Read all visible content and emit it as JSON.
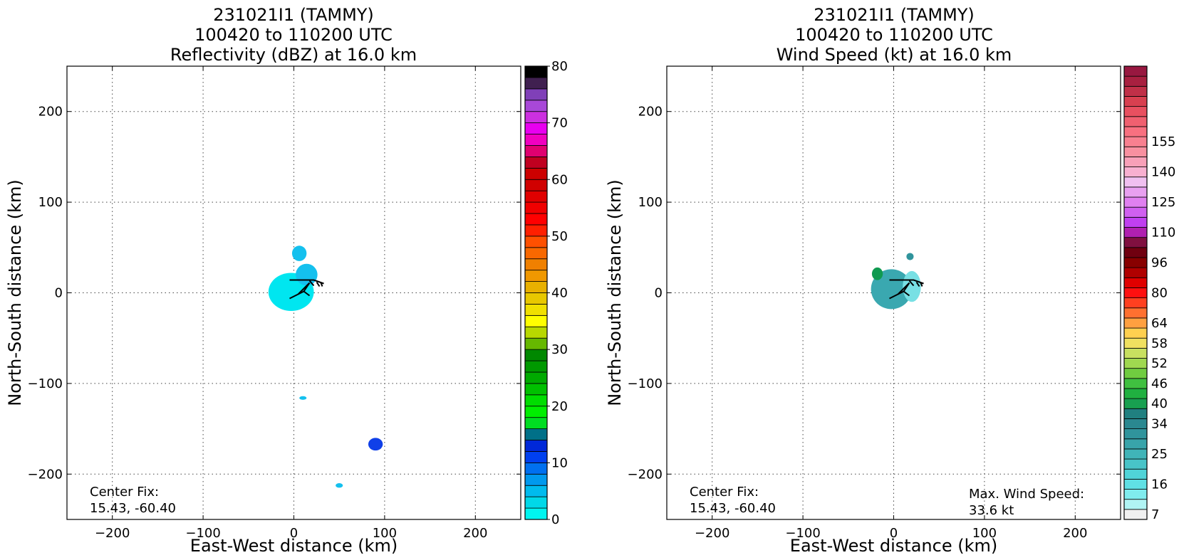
{
  "chart_data": [
    {
      "type": "heatmap",
      "title_lines": [
        "231021I1 (TAMMY)",
        "100420 to 110200 UTC",
        "Reflectivity (dBZ) at 16.0 km"
      ],
      "xlabel": "East-West distance (km)",
      "ylabel": "North-South distance (km)",
      "xlim": [
        -250,
        250
      ],
      "ylim": [
        -250,
        250
      ],
      "xticks": [
        -200,
        -100,
        0,
        100,
        200
      ],
      "yticks": [
        -200,
        -100,
        0,
        100,
        200
      ],
      "xtick_labels": [
        "−200",
        "−100",
        "0",
        "100",
        "200"
      ],
      "ytick_labels": [
        "−200",
        "−100",
        "0",
        "100",
        "200"
      ],
      "grid": true,
      "annotation_left": [
        "Center Fix:",
        "15.43, -60.40"
      ],
      "annotation_right": [],
      "colorbar": {
        "min": 0,
        "max": 80,
        "tick_values": [
          0,
          10,
          20,
          30,
          40,
          50,
          60,
          70,
          80
        ],
        "tick_labels": [
          "0",
          "10",
          "20",
          "30",
          "40",
          "50",
          "60",
          "70",
          "80"
        ],
        "colors": [
          "#00f5f0",
          "#00d8e8",
          "#00bbee",
          "#0099ee",
          "#0070f0",
          "#0040f0",
          "#0028d8",
          "#007088",
          "#00dd22",
          "#00ee00",
          "#00dd00",
          "#00c000",
          "#00aa00",
          "#009900",
          "#008800",
          "#66b800",
          "#b8d800",
          "#ffff00",
          "#f0e000",
          "#e8c800",
          "#e8b000",
          "#f09800",
          "#f08000",
          "#f86800",
          "#ff5000",
          "#ff2000",
          "#ff0000",
          "#f00000",
          "#e00000",
          "#d00000",
          "#cc0000",
          "#c00020",
          "#e00070",
          "#f000c0",
          "#e800f0",
          "#cc30e0",
          "#a848d8",
          "#8040b8",
          "#402050",
          "#000000"
        ]
      },
      "features": [
        {
          "name": "central-echo-cluster",
          "value_dbz": 3,
          "color": "#00e6f0",
          "x": [
            -28,
            22
          ],
          "y": [
            -20,
            22
          ]
        },
        {
          "name": "central-echo-upper",
          "value_dbz": 6,
          "color": "#14c0ee",
          "x": [
            2,
            26
          ],
          "y": [
            8,
            32
          ]
        },
        {
          "name": "echo-cluster-north",
          "value_dbz": 6,
          "color": "#14c0ee",
          "x": [
            -2,
            14
          ],
          "y": [
            35,
            52
          ]
        },
        {
          "name": "echo-speck-south",
          "value_dbz": 6,
          "color": "#14c0ee",
          "x": [
            6,
            14
          ],
          "y": [
            -118,
            -114
          ]
        },
        {
          "name": "echo-band-southeast",
          "value_dbz": 12,
          "color": "#1040e8",
          "x": [
            82,
            98
          ],
          "y": [
            -174,
            -160
          ]
        },
        {
          "name": "echo-speck-far-south",
          "value_dbz": 6,
          "color": "#14c0ee",
          "x": [
            46,
            54
          ],
          "y": [
            -215,
            -210
          ]
        }
      ],
      "wind_barb": {
        "color": "#000000"
      }
    },
    {
      "type": "heatmap",
      "title_lines": [
        "231021I1 (TAMMY)",
        "100420 to 110200 UTC",
        "Wind Speed (kt) at 16.0 km"
      ],
      "xlabel": "East-West distance (km)",
      "ylabel": "North-South distance (km)",
      "xlim": [
        -250,
        250
      ],
      "ylim": [
        -250,
        250
      ],
      "xticks": [
        -200,
        -100,
        0,
        100,
        200
      ],
      "yticks": [
        -200,
        -100,
        0,
        100,
        200
      ],
      "xtick_labels": [
        "−200",
        "−100",
        "0",
        "100",
        "200"
      ],
      "ytick_labels": [
        "−200",
        "−100",
        "0",
        "100",
        "200"
      ],
      "grid": true,
      "annotation_left": [
        "Center Fix:",
        "15.43, -60.40"
      ],
      "annotation_right": [
        "Max. Wind Speed:",
        "33.6 kt"
      ],
      "colorbar": {
        "tick_labels": [
          "7",
          "16",
          "25",
          "34",
          "40",
          "46",
          "52",
          "58",
          "64",
          "80",
          "96",
          "110",
          "125",
          "140",
          "155"
        ],
        "label_rows_from_bottom": [
          0,
          3,
          6,
          9,
          11,
          13,
          15,
          17,
          19,
          22,
          25,
          28,
          31,
          34,
          37
        ],
        "colors": [
          "#f0f0f0",
          "#b0f4f4",
          "#80ecee",
          "#60e0e4",
          "#50d4d8",
          "#48c4c8",
          "#40b4b8",
          "#38a4aa",
          "#30949c",
          "#2a8890",
          "#208080",
          "#18a050",
          "#20b040",
          "#40c040",
          "#70cc40",
          "#a0d850",
          "#c8e060",
          "#f0e060",
          "#ffd050",
          "#ffa040",
          "#ff7030",
          "#ff4020",
          "#ff1010",
          "#e00000",
          "#b00000",
          "#880000",
          "#700010",
          "#801040",
          "#b020b0",
          "#c040f0",
          "#d060f0",
          "#e080f0",
          "#e8a0f0",
          "#f0c0f0",
          "#f8b0d0",
          "#f8a0b8",
          "#f890a0",
          "#f88090",
          "#f87080",
          "#f06070",
          "#e85060",
          "#d84050",
          "#c03048",
          "#a82040",
          "#981840"
        ]
      },
      "features": [
        {
          "name": "wind-core-cluster",
          "value_kt": 22,
          "color": "#3aa8b0",
          "x": [
            -25,
            20
          ],
          "y": [
            -18,
            26
          ]
        },
        {
          "name": "wind-strong-patch",
          "value_kt": 34,
          "color": "#109a50",
          "x": [
            -24,
            -12
          ],
          "y": [
            14,
            28
          ]
        },
        {
          "name": "wind-light-fringe",
          "value_kt": 14,
          "color": "#78e0e4",
          "x": [
            10,
            30
          ],
          "y": [
            -10,
            24
          ]
        },
        {
          "name": "wind-north-speck",
          "value_kt": 24,
          "color": "#30949c",
          "x": [
            14,
            22
          ],
          "y": [
            36,
            44
          ]
        }
      ],
      "wind_barb": {
        "color": "#000000"
      }
    }
  ]
}
